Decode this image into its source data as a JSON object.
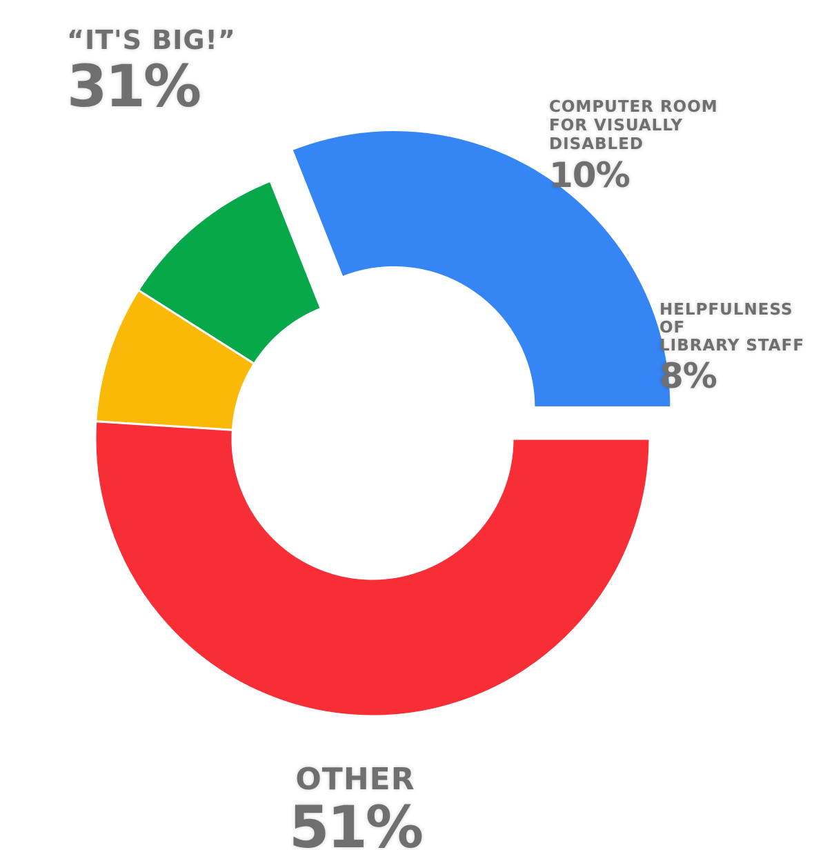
{
  "chart_data": {
    "type": "pie",
    "donut": true,
    "title": "",
    "slices": [
      {
        "label": "“IT'S BIG!”",
        "value": 31,
        "value_label": "31%",
        "color": "#3585F5",
        "exploded": true
      },
      {
        "label": "COMPUTER ROOM\nFOR VISUALLY\nDISABLED",
        "value": 10,
        "value_label": "10%",
        "color": "#06A84A"
      },
      {
        "label": "HELPFULNESS OF\nLIBRARY STAFF",
        "value": 8,
        "value_label": "8%",
        "color": "#FBB907"
      },
      {
        "label": "OTHER",
        "value": 51,
        "value_label": "51%",
        "color": "#F72E35"
      }
    ],
    "legend": "none",
    "label_placement": "outside"
  }
}
